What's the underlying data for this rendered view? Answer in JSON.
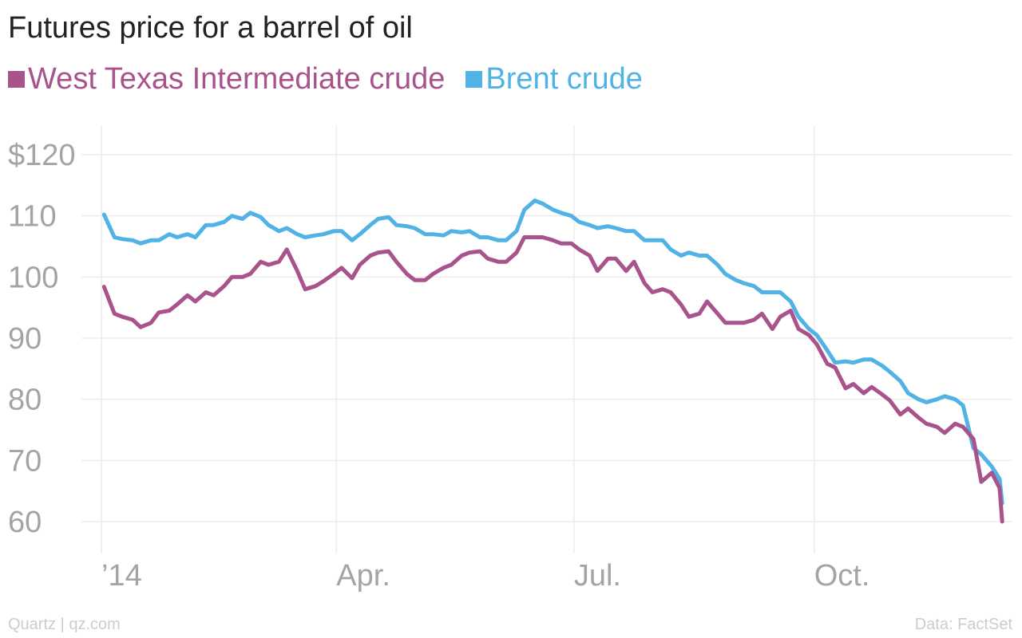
{
  "chart_data": {
    "type": "line",
    "title": "Futures price for a barrel of oil",
    "xlabel": "",
    "ylabel": "",
    "y_ticks": [
      {
        "value": 120,
        "label": "$120"
      },
      {
        "value": 110,
        "label": "110"
      },
      {
        "value": 100,
        "label": "100"
      },
      {
        "value": 90,
        "label": "90"
      },
      {
        "value": 80,
        "label": "80"
      },
      {
        "value": 70,
        "label": "70"
      },
      {
        "value": 60,
        "label": "60"
      }
    ],
    "x_ticks": [
      {
        "value": "2014-01-01",
        "label": "’14"
      },
      {
        "value": "2014-04-01",
        "label": "Apr."
      },
      {
        "value": "2014-07-01",
        "label": "Jul."
      },
      {
        "value": "2014-10-01",
        "label": "Oct."
      }
    ],
    "xlim": [
      "2014-01-01",
      "2014-12-15"
    ],
    "ylim": [
      55,
      125
    ],
    "grid": true,
    "legend_position": "top-left",
    "x": [
      "2014-01-02",
      "2014-01-06",
      "2014-01-09",
      "2014-01-13",
      "2014-01-16",
      "2014-01-20",
      "2014-01-23",
      "2014-01-27",
      "2014-01-30",
      "2014-02-03",
      "2014-02-06",
      "2014-02-10",
      "2014-02-13",
      "2014-02-17",
      "2014-02-20",
      "2014-02-24",
      "2014-02-27",
      "2014-03-03",
      "2014-03-06",
      "2014-03-10",
      "2014-03-13",
      "2014-03-17",
      "2014-03-20",
      "2014-03-24",
      "2014-03-27",
      "2014-03-31",
      "2014-04-03",
      "2014-04-07",
      "2014-04-10",
      "2014-04-14",
      "2014-04-17",
      "2014-04-21",
      "2014-04-24",
      "2014-04-28",
      "2014-05-01",
      "2014-05-05",
      "2014-05-08",
      "2014-05-12",
      "2014-05-15",
      "2014-05-19",
      "2014-05-22",
      "2014-05-26",
      "2014-05-29",
      "2014-06-02",
      "2014-06-05",
      "2014-06-09",
      "2014-06-12",
      "2014-06-16",
      "2014-06-19",
      "2014-06-23",
      "2014-06-26",
      "2014-06-30",
      "2014-07-03",
      "2014-07-07",
      "2014-07-10",
      "2014-07-14",
      "2014-07-17",
      "2014-07-21",
      "2014-07-24",
      "2014-07-28",
      "2014-07-31",
      "2014-08-04",
      "2014-08-07",
      "2014-08-11",
      "2014-08-14",
      "2014-08-18",
      "2014-08-21",
      "2014-08-25",
      "2014-08-28",
      "2014-09-01",
      "2014-09-04",
      "2014-09-08",
      "2014-09-11",
      "2014-09-15",
      "2014-09-18",
      "2014-09-22",
      "2014-09-25",
      "2014-09-29",
      "2014-10-02",
      "2014-10-06",
      "2014-10-09",
      "2014-10-13",
      "2014-10-16",
      "2014-10-20",
      "2014-10-23",
      "2014-10-27",
      "2014-10-30",
      "2014-11-03",
      "2014-11-06",
      "2014-11-10",
      "2014-11-13",
      "2014-11-17",
      "2014-11-20",
      "2014-11-24",
      "2014-11-27",
      "2014-12-01",
      "2014-12-04",
      "2014-12-08",
      "2014-12-11",
      "2014-12-12"
    ],
    "series": [
      {
        "name": "West Texas Intermediate crude",
        "color": "#a8538c",
        "values": [
          98.4,
          94,
          93.5,
          93,
          91.8,
          92.5,
          94.2,
          94.5,
          95.5,
          97,
          96,
          97.5,
          97,
          98.5,
          100,
          100,
          100.5,
          102.5,
          102,
          102.5,
          104.5,
          101,
          98,
          98.5,
          99.3,
          100.5,
          101.5,
          99.8,
          102,
          103.5,
          104,
          104.2,
          102.5,
          100.5,
          99.5,
          99.5,
          100.5,
          101.5,
          102,
          103.5,
          104,
          104.2,
          103,
          102.5,
          102.5,
          104,
          106.5,
          106.5,
          106.5,
          106,
          105.5,
          105.5,
          104.5,
          103.5,
          101,
          103,
          103,
          101,
          102.5,
          99,
          97.5,
          98,
          97.5,
          95.5,
          93.5,
          94,
          96,
          94,
          92.5,
          92.5,
          92.5,
          93,
          94,
          91.5,
          93.5,
          94.5,
          91.5,
          90.5,
          89,
          85.8,
          85.2,
          81.8,
          82.5,
          81,
          82,
          80.8,
          79.8,
          77.5,
          78.5,
          77,
          76,
          75.5,
          74.5,
          76,
          75.5,
          73.5,
          66.5,
          68,
          65.5,
          60
        ]
      },
      {
        "name": "Brent crude",
        "color": "#51b2e5",
        "values": [
          110.2,
          106.5,
          106.2,
          106,
          105.5,
          106,
          106,
          107,
          106.5,
          107,
          106.5,
          108.5,
          108.5,
          109,
          110,
          109.5,
          110.5,
          109.8,
          108.5,
          107.5,
          108,
          107,
          106.5,
          106.8,
          107,
          107.5,
          107.5,
          106,
          107,
          108.5,
          109.5,
          109.8,
          108.5,
          108.3,
          108,
          107,
          107,
          106.8,
          107.5,
          107.3,
          107.5,
          106.5,
          106.5,
          106,
          106,
          107.5,
          111,
          112.5,
          112,
          111,
          110.5,
          110,
          109,
          108.5,
          108,
          108.3,
          108,
          107.5,
          107.5,
          106,
          106,
          106,
          104.5,
          103.5,
          104,
          103.5,
          103.5,
          102,
          100.5,
          99.5,
          99,
          98.5,
          97.5,
          97.5,
          97.5,
          96,
          93.5,
          91.5,
          90.5,
          88,
          86,
          86.2,
          86,
          86.5,
          86.5,
          85.5,
          84.5,
          83,
          81,
          80,
          79.5,
          80,
          80.5,
          80,
          79,
          72,
          71,
          69,
          67,
          63
        ]
      }
    ]
  },
  "footer": {
    "source_left": "Quartz | qz.com",
    "source_right": "Data: FactSet"
  }
}
